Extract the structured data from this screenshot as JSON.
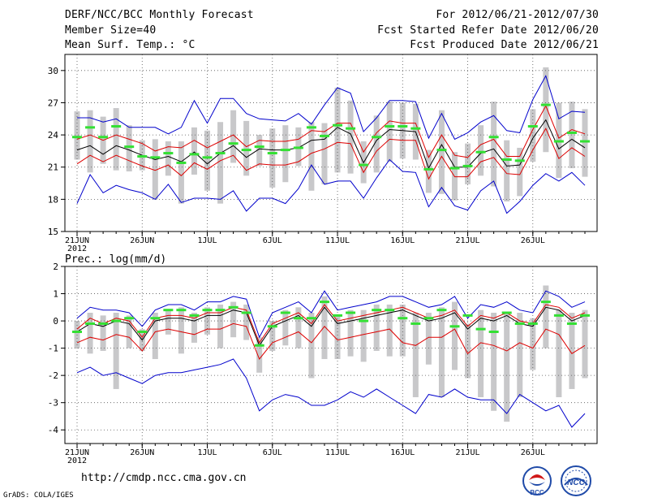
{
  "header": {
    "title": "DERF/NCC/BCC Monthly Forecast",
    "member_size": "Member Size=40",
    "variable": "Mean Surf. Temp.: °C",
    "period": "For 2012/06/21-2012/07/30",
    "started": "Fcst Started Refer Date 2012/06/20",
    "produced": "Fcst Produced Date 2012/06/21"
  },
  "footer": {
    "url": "http://cmdp.ncc.cma.gov.cn",
    "grads": "GrADS: COLA/IGES",
    "logo_left_text": "BCC",
    "logo_right_text": "NCC"
  },
  "colors": {
    "ensemble_max_min": "#0000cc",
    "ensemble_spread": "#dd0000",
    "ensemble_mean": "#000000",
    "box": "#c8c8ca",
    "median": "#33e033"
  },
  "chart_data": [
    {
      "type": "line",
      "title": "Mean Surf. Temp.: °C",
      "xlabel": "",
      "ylabel": "",
      "ylim": [
        15,
        31.5
      ],
      "yticks": [
        15,
        18,
        21,
        24,
        27,
        30
      ],
      "xticks": [
        {
          "day": 1,
          "label": "21JUN"
        },
        {
          "day": 6,
          "label": "26JUN"
        },
        {
          "day": 11,
          "label": "1JUL"
        },
        {
          "day": 16,
          "label": "6JUL"
        },
        {
          "day": 21,
          "label": "11JUL"
        },
        {
          "day": 26,
          "label": "16JUL"
        },
        {
          "day": 31,
          "label": "21JUL"
        },
        {
          "day": 36,
          "label": "26JUL"
        }
      ],
      "year_label": "2012",
      "x": [
        1,
        2,
        3,
        4,
        5,
        6,
        7,
        8,
        9,
        10,
        11,
        12,
        13,
        14,
        15,
        16,
        17,
        18,
        19,
        20,
        21,
        22,
        23,
        24,
        25,
        26,
        27,
        28,
        29,
        30,
        31,
        32,
        33,
        34,
        35,
        36,
        37,
        38,
        39,
        40
      ],
      "series": [
        {
          "name": "max",
          "values": [
            17.6,
            20.3,
            18.6,
            19.3,
            18.9,
            18.6,
            18.0,
            19.4,
            17.7,
            18.1,
            18.1,
            18.0,
            18.8,
            16.9,
            18.1,
            18.1,
            17.6,
            19.0,
            21.2,
            19.4,
            19.7,
            19.7,
            18.1,
            20.0,
            21.7,
            20.6,
            20.5,
            17.3,
            19.1,
            17.4,
            17.0,
            18.8,
            19.7,
            16.7,
            17.8,
            19.3,
            20.4,
            19.7,
            20.5,
            19.3
          ]
        },
        {
          "name": "max_upper",
          "values": [
            25.6,
            25.6,
            25.2,
            25.5,
            24.7,
            24.7,
            24.7,
            24.1,
            24.7,
            27.2,
            25.1,
            27.4,
            27.4,
            26.0,
            25.5,
            25.4,
            25.3,
            26.0,
            25.0,
            26.8,
            28.4,
            27.9,
            24.3,
            25.6,
            27.2,
            27.2,
            27.1,
            23.7,
            26.0,
            23.6,
            24.2,
            25.2,
            25.8,
            24.4,
            24.2,
            27.3,
            29.5,
            25.5,
            26.2,
            26.1
          ]
        },
        {
          "name": "spread_upper",
          "values": [
            23.6,
            24.0,
            23.5,
            24.0,
            23.6,
            23.2,
            22.5,
            22.9,
            22.8,
            23.5,
            22.8,
            23.4,
            24.0,
            22.9,
            23.5,
            23.4,
            23.4,
            23.6,
            24.4,
            24.3,
            25.1,
            25.1,
            22.4,
            24.2,
            25.3,
            25.1,
            25.1,
            21.9,
            24.0,
            22.1,
            21.9,
            23.1,
            23.6,
            22.0,
            22.0,
            24.5,
            26.7,
            23.7,
            24.5,
            24.1
          ]
        },
        {
          "name": "mean",
          "values": [
            22.6,
            23.0,
            22.2,
            23.0,
            22.6,
            22.1,
            21.7,
            22.0,
            21.5,
            22.4,
            21.3,
            22.3,
            23.0,
            21.9,
            22.7,
            22.6,
            22.6,
            22.8,
            23.5,
            23.6,
            24.7,
            24.1,
            21.4,
            23.5,
            24.5,
            24.4,
            24.3,
            20.9,
            23.1,
            21.0,
            21.0,
            22.3,
            22.7,
            21.1,
            21.2,
            23.7,
            25.4,
            22.7,
            23.6,
            22.8
          ]
        },
        {
          "name": "spread_lower",
          "values": [
            21.3,
            22.1,
            21.5,
            22.1,
            21.6,
            21.1,
            20.7,
            21.2,
            20.2,
            21.4,
            20.8,
            21.6,
            22.1,
            20.7,
            21.3,
            21.2,
            21.2,
            21.5,
            22.3,
            22.7,
            23.3,
            23.2,
            20.5,
            22.5,
            23.6,
            23.5,
            23.5,
            19.9,
            22.0,
            20.1,
            20.1,
            21.5,
            21.9,
            20.4,
            20.3,
            22.6,
            24.6,
            21.8,
            22.8,
            22.0
          ]
        }
      ],
      "boxes": [
        {
          "low": 21.7,
          "high": 26.2
        },
        {
          "low": 20.5,
          "high": 26.3
        },
        {
          "low": 21.3,
          "high": 25.7
        },
        {
          "low": 20.7,
          "high": 26.5
        },
        {
          "low": 20.6,
          "high": 24.9
        },
        {
          "low": 20.7,
          "high": 23.5
        },
        {
          "low": 18.0,
          "high": 23.6
        },
        {
          "low": 20.2,
          "high": 23.4
        },
        {
          "low": 17.6,
          "high": 23.4
        },
        {
          "low": 20.3,
          "high": 24.7
        },
        {
          "low": 18.8,
          "high": 24.4
        },
        {
          "low": 17.6,
          "high": 25.2
        },
        {
          "low": 21.4,
          "high": 26.3
        },
        {
          "low": 20.2,
          "high": 25.3
        },
        {
          "low": 21.1,
          "high": 24.0
        },
        {
          "low": 19.1,
          "high": 24.6
        },
        {
          "low": 19.6,
          "high": 24.9
        },
        {
          "low": 21.1,
          "high": 24.7
        },
        {
          "low": 18.8,
          "high": 25.2
        },
        {
          "low": 19.4,
          "high": 25.1
        },
        {
          "low": 20.5,
          "high": 28.4
        },
        {
          "low": 20.4,
          "high": 27.2
        },
        {
          "low": 19.5,
          "high": 23.4
        },
        {
          "low": 20.5,
          "high": 25.8
        },
        {
          "low": 21.5,
          "high": 27.1
        },
        {
          "low": 21.8,
          "high": 27.0
        },
        {
          "low": 21.7,
          "high": 26.9
        },
        {
          "low": 18.6,
          "high": 22.6
        },
        {
          "low": 18.5,
          "high": 26.3
        },
        {
          "low": 17.9,
          "high": 22.4
        },
        {
          "low": 19.4,
          "high": 23.2
        },
        {
          "low": 20.2,
          "high": 24.9
        },
        {
          "low": 19.2,
          "high": 27.1
        },
        {
          "low": 17.8,
          "high": 23.5
        },
        {
          "low": 18.3,
          "high": 22.8
        },
        {
          "low": 21.5,
          "high": 26.4
        },
        {
          "low": 22.4,
          "high": 30.3
        },
        {
          "low": 20.0,
          "high": 27.0
        },
        {
          "low": 20.9,
          "high": 27.1
        },
        {
          "low": 20.1,
          "high": 26.4
        }
      ],
      "medians": [
        23.8,
        24.7,
        23.8,
        24.8,
        22.9,
        22.0,
        21.9,
        22.3,
        21.4,
        22.2,
        21.9,
        22.3,
        23.2,
        22.6,
        22.9,
        22.3,
        22.6,
        22.8,
        24.7,
        23.9,
        24.9,
        24.6,
        21.2,
        23.8,
        24.8,
        24.8,
        24.6,
        20.8,
        22.6,
        20.9,
        21.1,
        22.4,
        23.8,
        21.7,
        21.6,
        24.8,
        26.8,
        23.4,
        24.2,
        23.4
      ]
    },
    {
      "type": "line",
      "title": "Prec.: log(mm/d)",
      "xlabel": "",
      "ylabel": "",
      "ylim": [
        -4.5,
        2
      ],
      "yticks": [
        -4,
        -3,
        -2,
        -1,
        0,
        1,
        2
      ],
      "xticks": [
        {
          "day": 1,
          "label": "21JUN"
        },
        {
          "day": 6,
          "label": "26JUN"
        },
        {
          "day": 11,
          "label": "1JUL"
        },
        {
          "day": 16,
          "label": "6JUL"
        },
        {
          "day": 21,
          "label": "11JUL"
        },
        {
          "day": 26,
          "label": "16JUL"
        },
        {
          "day": 31,
          "label": "21JUL"
        },
        {
          "day": 36,
          "label": "26JUL"
        }
      ],
      "year_label": "2012",
      "x": [
        1,
        2,
        3,
        4,
        5,
        6,
        7,
        8,
        9,
        10,
        11,
        12,
        13,
        14,
        15,
        16,
        17,
        18,
        19,
        20,
        21,
        22,
        23,
        24,
        25,
        26,
        27,
        28,
        29,
        30,
        31,
        32,
        33,
        34,
        35,
        36,
        37,
        38,
        39,
        40
      ],
      "series": [
        {
          "name": "min",
          "values": [
            -1.9,
            -1.7,
            -2.0,
            -1.9,
            -2.1,
            -2.3,
            -2.0,
            -1.9,
            -1.9,
            -1.8,
            -1.7,
            -1.6,
            -1.4,
            -2.1,
            -3.3,
            -2.9,
            -2.7,
            -2.8,
            -3.1,
            -3.1,
            -2.9,
            -2.6,
            -2.8,
            -2.5,
            -2.8,
            -3.1,
            -3.4,
            -2.7,
            -2.8,
            -2.5,
            -2.8,
            -2.9,
            -2.9,
            -3.4,
            -2.7,
            -3.0,
            -3.3,
            -3.1,
            -3.9,
            -3.4
          ]
        },
        {
          "name": "max",
          "values": [
            0.1,
            0.5,
            0.4,
            0.4,
            0.3,
            -0.2,
            0.4,
            0.6,
            0.6,
            0.4,
            0.7,
            0.7,
            0.9,
            0.8,
            -0.6,
            0.3,
            0.5,
            0.7,
            0.3,
            1.1,
            0.4,
            0.5,
            0.6,
            0.7,
            0.9,
            0.9,
            0.7,
            0.5,
            0.6,
            0.9,
            0.1,
            0.6,
            0.5,
            0.7,
            0.4,
            0.3,
            1.1,
            0.9,
            0.5,
            0.7
          ]
        },
        {
          "name": "spread_upper",
          "values": [
            -0.3,
            0.1,
            -0.1,
            0.1,
            0.0,
            -0.6,
            0.1,
            0.2,
            0.2,
            0.1,
            0.3,
            0.3,
            0.5,
            0.4,
            -0.8,
            -0.1,
            0.1,
            0.3,
            -0.1,
            0.6,
            0.0,
            0.1,
            0.2,
            0.3,
            0.4,
            0.5,
            0.3,
            0.1,
            0.2,
            0.4,
            -0.2,
            0.2,
            0.1,
            0.3,
            0.0,
            -0.1,
            0.6,
            0.5,
            0.1,
            0.3
          ]
        },
        {
          "name": "mean",
          "values": [
            -0.4,
            -0.1,
            -0.2,
            -0.0,
            -0.1,
            -0.7,
            0.0,
            0.1,
            0.1,
            0.0,
            0.2,
            0.2,
            0.4,
            0.3,
            -0.9,
            -0.2,
            0.0,
            0.2,
            -0.2,
            0.5,
            -0.1,
            0.0,
            0.1,
            0.2,
            0.3,
            0.4,
            0.2,
            0.0,
            0.1,
            0.3,
            -0.3,
            0.1,
            0.0,
            0.2,
            -0.1,
            -0.2,
            0.5,
            0.4,
            0.0,
            0.2
          ]
        },
        {
          "name": "spread_lower",
          "values": [
            -0.8,
            -0.6,
            -0.7,
            -0.5,
            -0.6,
            -1.1,
            -0.4,
            -0.3,
            -0.4,
            -0.5,
            -0.3,
            -0.3,
            -0.1,
            -0.2,
            -1.4,
            -0.8,
            -0.6,
            -0.4,
            -0.8,
            -0.2,
            -0.7,
            -0.6,
            -0.5,
            -0.4,
            -0.3,
            -0.8,
            -0.9,
            -0.6,
            -0.6,
            -0.3,
            -1.2,
            -0.8,
            -0.9,
            -1.1,
            -0.8,
            -1.0,
            -0.3,
            -0.5,
            -1.2,
            -0.9
          ]
        }
      ],
      "boxes": [
        {
          "low": -1.0,
          "high": 0.0
        },
        {
          "low": -1.2,
          "high": 0.3
        },
        {
          "low": -1.1,
          "high": 0.2
        },
        {
          "low": -2.5,
          "high": 0.3
        },
        {
          "low": -1.0,
          "high": 0.2
        },
        {
          "low": -1.1,
          "high": -0.3
        },
        {
          "low": -1.4,
          "high": 0.3
        },
        {
          "low": -0.5,
          "high": 0.4
        },
        {
          "low": -1.2,
          "high": 0.5
        },
        {
          "low": -0.8,
          "high": 0.3
        },
        {
          "low": -0.5,
          "high": 0.5
        },
        {
          "low": -1.0,
          "high": 0.6
        },
        {
          "low": -0.6,
          "high": 0.7
        },
        {
          "low": -0.7,
          "high": 0.6
        },
        {
          "low": -1.9,
          "high": -0.6
        },
        {
          "low": -1.1,
          "high": 0.0
        },
        {
          "low": -0.9,
          "high": 0.4
        },
        {
          "low": -1.0,
          "high": 0.5
        },
        {
          "low": -2.1,
          "high": 0.3
        },
        {
          "low": -1.4,
          "high": 0.9
        },
        {
          "low": -1.4,
          "high": 0.2
        },
        {
          "low": -1.3,
          "high": 0.4
        },
        {
          "low": -1.5,
          "high": 0.4
        },
        {
          "low": -1.1,
          "high": 0.6
        },
        {
          "low": -1.3,
          "high": 0.6
        },
        {
          "low": -1.3,
          "high": 0.6
        },
        {
          "low": -2.8,
          "high": 0.3
        },
        {
          "low": -1.6,
          "high": 0.3
        },
        {
          "low": -2.8,
          "high": 0.5
        },
        {
          "low": -1.8,
          "high": 0.7
        },
        {
          "low": -2.1,
          "high": -0.1
        },
        {
          "low": -2.8,
          "high": 0.4
        },
        {
          "low": -3.3,
          "high": 0.3
        },
        {
          "low": -3.7,
          "high": 0.3
        },
        {
          "low": -2.8,
          "high": 0.3
        },
        {
          "low": -1.8,
          "high": 0.1
        },
        {
          "low": -1.0,
          "high": 1.3
        },
        {
          "low": -2.8,
          "high": 0.4
        },
        {
          "low": -2.5,
          "high": 0.3
        },
        {
          "low": -2.1,
          "high": 0.4
        }
      ],
      "medians": [
        -0.4,
        -0.1,
        -0.1,
        0.0,
        0.1,
        -0.4,
        0.1,
        0.4,
        0.4,
        0.2,
        0.4,
        0.4,
        0.5,
        0.3,
        -0.9,
        -0.2,
        0.3,
        0.1,
        0.1,
        0.7,
        0.2,
        0.3,
        0.0,
        0.4,
        0.4,
        0.1,
        -0.1,
        0.1,
        0.4,
        -0.2,
        0.2,
        -0.3,
        -0.4,
        0.3,
        -0.1,
        -0.1,
        0.7,
        0.2,
        -0.1,
        0.2
      ]
    }
  ]
}
